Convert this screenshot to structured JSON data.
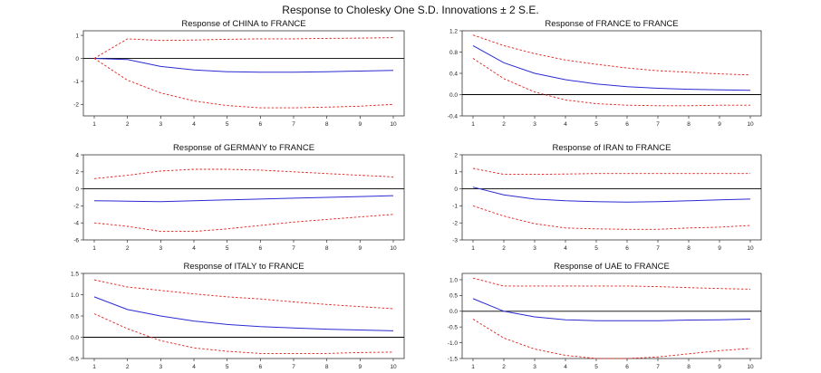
{
  "main_title": "Response to Cholesky One S.D. Innovations ± 2 S.E.",
  "colors": {
    "response": "#2b2bd4",
    "bands": "#e0201b",
    "zero_line": "#000000",
    "axis": "#333333"
  },
  "chart_data": [
    {
      "type": "line",
      "title": "Response of CHINA to FRANCE",
      "x": [
        1,
        2,
        3,
        4,
        5,
        6,
        7,
        8,
        9,
        10
      ],
      "ylim": [
        -2.5,
        1.2
      ],
      "yticks": [
        1,
        0,
        -1,
        -2
      ],
      "ytick_labels": [
        "1",
        "0",
        "-1",
        "-2"
      ],
      "series": [
        {
          "role": "response",
          "values": [
            0,
            -0.05,
            -0.35,
            -0.5,
            -0.58,
            -0.6,
            -0.6,
            -0.58,
            -0.55,
            -0.52
          ]
        },
        {
          "role": "upper",
          "values": [
            0,
            0.85,
            0.78,
            0.8,
            0.83,
            0.85,
            0.85,
            0.87,
            0.88,
            0.9
          ]
        },
        {
          "role": "lower",
          "values": [
            0,
            -0.95,
            -1.5,
            -1.85,
            -2.05,
            -2.15,
            -2.15,
            -2.12,
            -2.08,
            -2.0
          ]
        }
      ]
    },
    {
      "type": "line",
      "title": "Response of FRANCE to FRANCE",
      "x": [
        1,
        2,
        3,
        4,
        5,
        6,
        7,
        8,
        9,
        10
      ],
      "ylim": [
        -0.4,
        1.2
      ],
      "yticks": [
        1.2,
        0.8,
        0.4,
        0.0,
        -0.4
      ],
      "ytick_labels": [
        "1.2",
        "0.8",
        "0.4",
        "0.0",
        "-0.4"
      ],
      "series": [
        {
          "role": "response",
          "values": [
            0.92,
            0.6,
            0.4,
            0.28,
            0.2,
            0.15,
            0.12,
            0.1,
            0.09,
            0.08
          ]
        },
        {
          "role": "upper",
          "values": [
            1.12,
            0.92,
            0.77,
            0.65,
            0.57,
            0.5,
            0.45,
            0.42,
            0.39,
            0.37
          ]
        },
        {
          "role": "lower",
          "values": [
            0.68,
            0.3,
            0.05,
            -0.1,
            -0.17,
            -0.2,
            -0.21,
            -0.21,
            -0.2,
            -0.2
          ]
        }
      ]
    },
    {
      "type": "line",
      "title": "Response of GERMANY to FRANCE",
      "x": [
        1,
        2,
        3,
        4,
        5,
        6,
        7,
        8,
        9,
        10
      ],
      "ylim": [
        -6,
        4
      ],
      "yticks": [
        4,
        2,
        0,
        -2,
        -4,
        -6
      ],
      "ytick_labels": [
        "4",
        "2",
        "0",
        "-2",
        "-4",
        "-6"
      ],
      "series": [
        {
          "role": "response",
          "values": [
            -1.4,
            -1.45,
            -1.5,
            -1.4,
            -1.3,
            -1.2,
            -1.1,
            -1.0,
            -0.9,
            -0.8
          ]
        },
        {
          "role": "upper",
          "values": [
            1.2,
            1.6,
            2.1,
            2.3,
            2.3,
            2.2,
            2.0,
            1.8,
            1.6,
            1.4
          ]
        },
        {
          "role": "lower",
          "values": [
            -4.0,
            -4.4,
            -5.0,
            -5.0,
            -4.7,
            -4.3,
            -3.9,
            -3.6,
            -3.3,
            -3.0
          ]
        }
      ]
    },
    {
      "type": "line",
      "title": "Response of IRAN to FRANCE",
      "x": [
        1,
        2,
        3,
        4,
        5,
        6,
        7,
        8,
        9,
        10
      ],
      "ylim": [
        -3,
        2
      ],
      "yticks": [
        2,
        1,
        0,
        -1,
        -2,
        -3
      ],
      "ytick_labels": [
        "2",
        "1",
        "0",
        "-1",
        "-2",
        "-3"
      ],
      "series": [
        {
          "role": "response",
          "values": [
            0.1,
            -0.35,
            -0.6,
            -0.7,
            -0.75,
            -0.78,
            -0.75,
            -0.7,
            -0.65,
            -0.6
          ]
        },
        {
          "role": "upper",
          "values": [
            1.2,
            0.85,
            0.85,
            0.87,
            0.9,
            0.9,
            0.9,
            0.9,
            0.9,
            0.9
          ]
        },
        {
          "role": "lower",
          "values": [
            -1.0,
            -1.6,
            -2.05,
            -2.3,
            -2.35,
            -2.38,
            -2.38,
            -2.3,
            -2.25,
            -2.15
          ]
        }
      ]
    },
    {
      "type": "line",
      "title": "Response of ITALY to FRANCE",
      "x": [
        1,
        2,
        3,
        4,
        5,
        6,
        7,
        8,
        9,
        10
      ],
      "ylim": [
        -0.5,
        1.5
      ],
      "yticks": [
        1.5,
        1.0,
        0.5,
        0.0,
        -0.5
      ],
      "ytick_labels": [
        "1.5",
        "1.0",
        "0.5",
        "0.0",
        "-0.5"
      ],
      "series": [
        {
          "role": "response",
          "values": [
            0.95,
            0.65,
            0.5,
            0.38,
            0.3,
            0.25,
            0.22,
            0.19,
            0.17,
            0.15
          ]
        },
        {
          "role": "upper",
          "values": [
            1.35,
            1.18,
            1.1,
            1.02,
            0.95,
            0.9,
            0.83,
            0.77,
            0.72,
            0.67
          ]
        },
        {
          "role": "lower",
          "values": [
            0.55,
            0.2,
            -0.08,
            -0.25,
            -0.33,
            -0.38,
            -0.38,
            -0.38,
            -0.36,
            -0.35
          ]
        }
      ]
    },
    {
      "type": "line",
      "title": "Response of UAE to FRANCE",
      "x": [
        1,
        2,
        3,
        4,
        5,
        6,
        7,
        8,
        9,
        10
      ],
      "ylim": [
        -1.5,
        1.2
      ],
      "yticks": [
        1.0,
        0.5,
        0.0,
        -0.5,
        -1.0,
        -1.5
      ],
      "ytick_labels": [
        "1.0",
        "0.5",
        "0.0",
        "-0.5",
        "-1.0",
        "-1.5"
      ],
      "series": [
        {
          "role": "response",
          "values": [
            0.4,
            0.0,
            -0.18,
            -0.27,
            -0.3,
            -0.3,
            -0.3,
            -0.28,
            -0.27,
            -0.25
          ]
        },
        {
          "role": "upper",
          "values": [
            1.05,
            0.8,
            0.8,
            0.8,
            0.8,
            0.8,
            0.78,
            0.75,
            0.72,
            0.7
          ]
        },
        {
          "role": "lower",
          "values": [
            -0.25,
            -0.85,
            -1.2,
            -1.4,
            -1.5,
            -1.5,
            -1.45,
            -1.35,
            -1.25,
            -1.18
          ]
        }
      ]
    }
  ]
}
